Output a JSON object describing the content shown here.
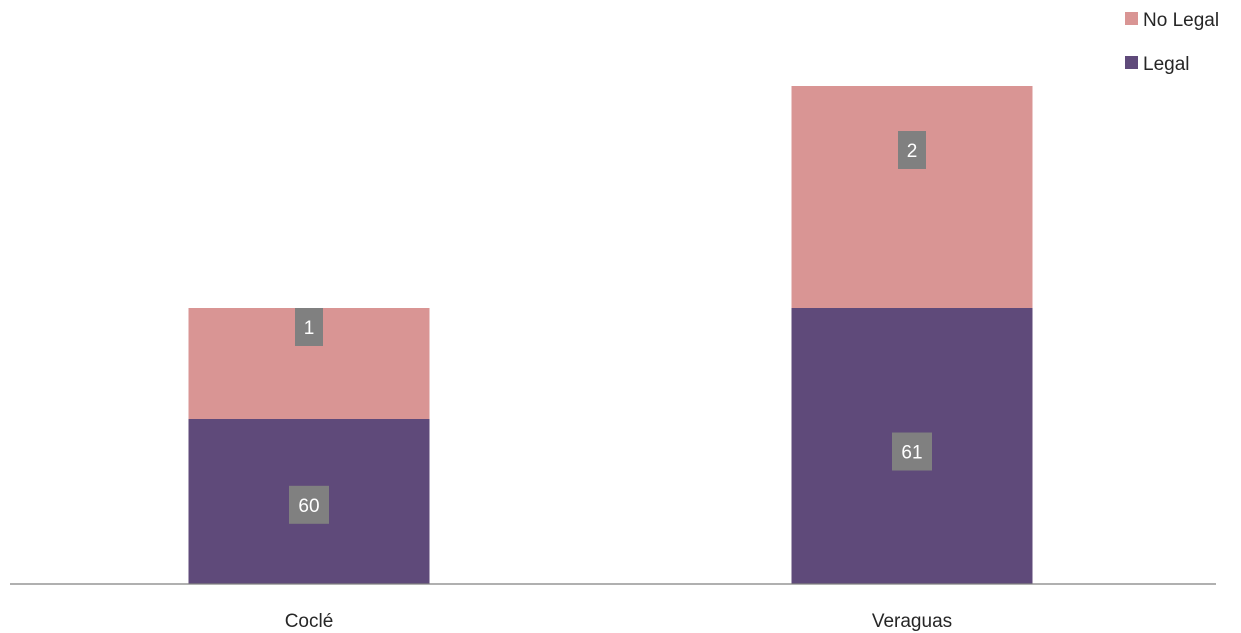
{
  "chart_data": {
    "type": "bar",
    "stacked": true,
    "categories": [
      "Coclé",
      "Veraguas"
    ],
    "series": [
      {
        "name": "Legal",
        "values": [
          60,
          61
        ],
        "data_labels": [
          "60",
          "61"
        ],
        "color": "#5f4a7a"
      },
      {
        "name": "No Legal",
        "values": [
          1,
          2
        ],
        "data_labels": [
          "1",
          "2"
        ],
        "color": "#d99594"
      }
    ],
    "title": "",
    "xlabel": "",
    "ylabel": "",
    "grid": false,
    "legend_position": "top-right",
    "label_box_color": "#808080"
  }
}
